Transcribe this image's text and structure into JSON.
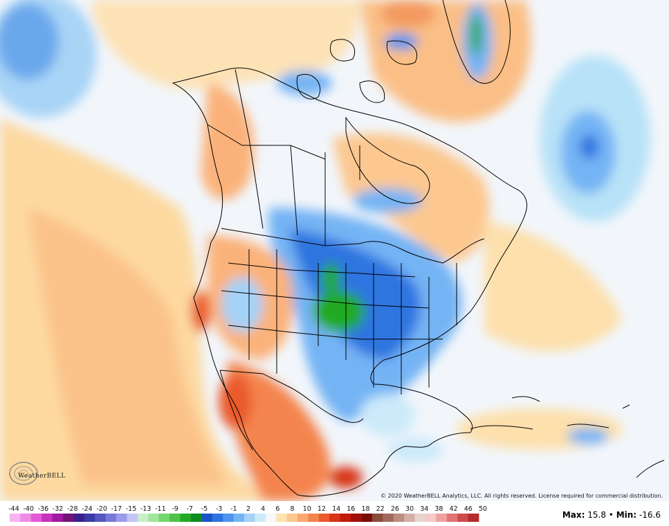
{
  "copyright": "© 2020 WeatherBELL Analytics, LLC. All rights reserved. License required for commercial distribution.",
  "logo_text": "WeatherBELL",
  "maxmin": {
    "max_label": "Max:",
    "max_value": "15.8",
    "separator": "•",
    "min_label": "Min:",
    "min_value": "-16.6"
  },
  "legend": {
    "ticks": [
      "-44",
      "-40",
      "-36",
      "-32",
      "-28",
      "-24",
      "-20",
      "-17",
      "-15",
      "-13",
      "-11",
      "-9",
      "-7",
      "-5",
      "-3",
      "-1",
      "2",
      "4",
      "6",
      "8",
      "10",
      "12",
      "14",
      "16",
      "18",
      "22",
      "26",
      "30",
      "34",
      "38",
      "42",
      "46",
      "50"
    ],
    "colors": [
      "#f7b4f0",
      "#f08ce4",
      "#e35ad6",
      "#c830c0",
      "#9e1a9e",
      "#74127a",
      "#3c1d8c",
      "#3a3aa8",
      "#5656c4",
      "#7878d8",
      "#9c9cea",
      "#c4c4f6",
      "#c8f0c8",
      "#a0e69c",
      "#74d670",
      "#4cc248",
      "#22aa22",
      "#0e8c1e",
      "#1a55c8",
      "#2e74e0",
      "#4c94ee",
      "#74b4f4",
      "#a4d2f8",
      "#cceafa",
      "#f4f8fc",
      "#fde4b0",
      "#fcc890",
      "#faa870",
      "#f4844e",
      "#ea5a2c",
      "#d83418",
      "#c01c0c",
      "#a01008",
      "#7a0c08",
      "#8a4a3c",
      "#a26a5c",
      "#bc8c80",
      "#d2b0a6",
      "#e8d4cc",
      "#f6c8c8",
      "#eea0a0",
      "#e07474",
      "#cc4c4c",
      "#b42c2c"
    ]
  }
}
